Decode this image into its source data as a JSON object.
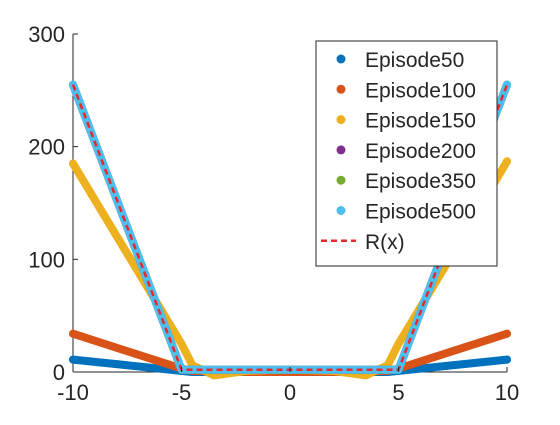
{
  "chart_data": {
    "type": "line",
    "title": "",
    "xlabel": "",
    "ylabel": "",
    "xlim": [
      -10,
      10
    ],
    "ylim": [
      0,
      300
    ],
    "xticks": [
      -10,
      -5,
      0,
      5,
      10
    ],
    "yticks": [
      0,
      100,
      200,
      300
    ],
    "xtick_labels": [
      "-10",
      "-5",
      "0",
      "5",
      "10"
    ],
    "ytick_labels": [
      "0",
      "100",
      "200",
      "300"
    ],
    "grid": false,
    "legend_position": "top-right",
    "series": [
      {
        "name": "Episode50",
        "color": "#0072BD",
        "style": "markers",
        "x": [
          -10,
          -5,
          -4.5,
          -2,
          0,
          2,
          4.5,
          5,
          10
        ],
        "y": [
          11,
          1,
          0,
          0,
          0,
          0,
          0,
          1,
          11
        ]
      },
      {
        "name": "Episode100",
        "color": "#D95319",
        "style": "markers",
        "x": [
          -10,
          -5,
          -4.5,
          -2,
          0,
          2,
          4.5,
          5,
          10
        ],
        "y": [
          34,
          3,
          1,
          0,
          0,
          0,
          1,
          3,
          34
        ]
      },
      {
        "name": "Episode150",
        "color": "#EDB120",
        "style": "markers",
        "x": [
          -10,
          -7.5,
          -5,
          -4.5,
          -3.5,
          -2,
          0,
          2,
          3.5,
          4.5,
          5,
          7.5,
          10
        ],
        "y": [
          185,
          105,
          25,
          6,
          -3,
          1,
          2,
          1,
          -3,
          6,
          25,
          105,
          187
        ]
      },
      {
        "name": "Episode200",
        "color": "#7E2F8E",
        "style": "markers",
        "x": [
          -10,
          -5,
          -4.5,
          0,
          4.5,
          5,
          10
        ],
        "y": [
          255,
          2,
          2,
          2,
          2,
          2,
          255
        ]
      },
      {
        "name": "Episode350",
        "color": "#77AC30",
        "style": "markers",
        "x": [
          -10,
          -5,
          -4.5,
          0,
          4.5,
          5,
          10
        ],
        "y": [
          255,
          2,
          2,
          2,
          2,
          2,
          255
        ]
      },
      {
        "name": "Episode500",
        "color": "#4DBEEE",
        "style": "markers",
        "x": [
          -10,
          -5,
          -4.5,
          0,
          4.5,
          5,
          10
        ],
        "y": [
          255,
          2,
          2,
          2,
          2,
          2,
          255
        ]
      },
      {
        "name": "R(x)",
        "color": "#E8282D",
        "style": "dashed",
        "x": [
          -10,
          -5,
          -4.5,
          0,
          4.5,
          5,
          10
        ],
        "y": [
          255,
          2,
          2,
          2,
          2,
          2,
          255
        ]
      }
    ]
  }
}
